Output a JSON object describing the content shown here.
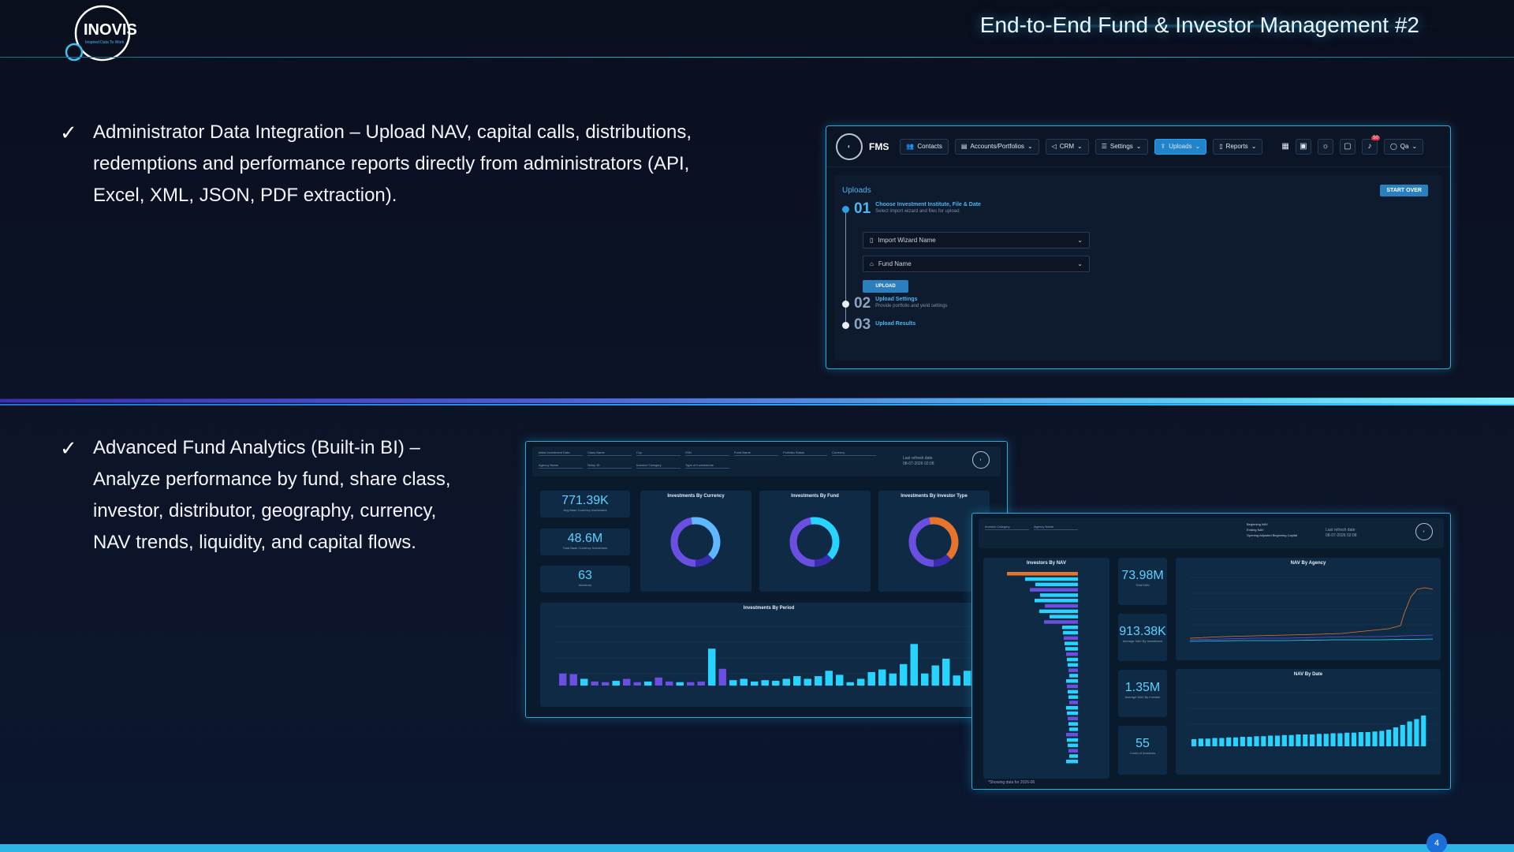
{
  "header": {
    "logo_text": "INOVIS",
    "logo_tagline": "Inspired Data To Work",
    "title": "End-to-End Fund & Investor Management #2"
  },
  "bullets": [
    {
      "check": "✓",
      "text": "Administrator Data Integration – Upload NAV, capital calls, distributions, redemptions and performance reports directly from administrators (API, Excel, XML, JSON, PDF extraction)."
    },
    {
      "check": "✓",
      "text": "Advanced Fund Analytics (Built-in BI) – Analyze performance by fund, share class, investor, distributor, geography, currency, NAV trends, liquidity, and capital flows."
    }
  ],
  "fms": {
    "brand": "FMS",
    "nav": [
      "Contacts",
      "Accounts/Portfolios",
      "CRM",
      "Settings",
      "Uploads",
      "Reports"
    ],
    "active_nav": "Uploads",
    "user": "Qa",
    "notif_count": "50",
    "uploads_title": "Uploads",
    "start_over": "START OVER",
    "steps": [
      {
        "num": "01",
        "title": "Choose Investment Institute, File & Date",
        "sub": "Select import wizard and files for upload"
      },
      {
        "num": "02",
        "title": "Upload Settings",
        "sub": "Provide portfolio and yield settings"
      },
      {
        "num": "03",
        "title": "Upload Results",
        "sub": ""
      }
    ],
    "import_wizard_placeholder": "Import Wizard Name",
    "fund_name_placeholder": "Fund Name",
    "upload_btn": "UPLOAD"
  },
  "dash1": {
    "kpis": [
      {
        "value": "771.39K",
        "label": "Avg Base Currency Investment"
      },
      {
        "value": "48.6M",
        "label": "Total Base Currency Investment"
      },
      {
        "value": "63",
        "label": "Investors"
      }
    ],
    "refresh": "Last refresh date\n08-07-2026 02:08",
    "donuts": [
      {
        "title": "Investments By Currency",
        "colors": [
          "#5fb8ff",
          "#6a4fe0",
          "#3a2cae"
        ]
      },
      {
        "title": "Investments By Fund",
        "colors": [
          "#27d3ff",
          "#6a4fe0",
          "#3a2cae"
        ]
      },
      {
        "title": "Investments By Investor Type",
        "colors": [
          "#e8742b",
          "#6a4fe0",
          "#3a2cae"
        ]
      }
    ],
    "period_title": "Investments By Period",
    "filter_labels": [
      "Initial Investment Date",
      "Class Name",
      "Ccy",
      "ISIN",
      "Fund Name",
      "Portfolio Status",
      "Currency",
      "Agency Name",
      "Setup ID",
      "Investor Category",
      "Type of Investments"
    ],
    "period_bars": [
      0.18,
      0.17,
      0.1,
      0.06,
      0.05,
      0.07,
      0.1,
      0.05,
      0.06,
      0.12,
      0.06,
      0.05,
      0.05,
      0.06,
      0.55,
      0.25,
      0.08,
      0.1,
      0.06,
      0.08,
      0.07,
      0.1,
      0.14,
      0.1,
      0.14,
      0.22,
      0.16,
      0.05,
      0.1,
      0.2,
      0.24,
      0.18,
      0.32,
      0.62,
      0.18,
      0.3,
      0.4,
      0.15,
      0.22,
      0.1
    ]
  },
  "dash2": {
    "kpis": [
      {
        "value": "73.98M",
        "label": "Total NAV"
      },
      {
        "value": "913.38K",
        "label": "Average NAV By Investment"
      },
      {
        "value": "1.35M",
        "label": "Average NAV By Investor"
      },
      {
        "value": "55",
        "label": "Count of Investors"
      }
    ],
    "refresh": "Last refresh date\n08-07-2026 02:08",
    "panels": [
      "Investors By NAV",
      "NAV By Agency",
      "NAV By Date"
    ],
    "filter_labels": [
      "Investor Category",
      "Agency Name"
    ],
    "radio": [
      "Beginning NAV",
      "Ending NAV",
      "Opening Adjusted Beginning Capital"
    ],
    "footer": "*Showing data for 2026-06",
    "nav_by_date_bars": [
      0.12,
      0.13,
      0.13,
      0.14,
      0.14,
      0.15,
      0.15,
      0.16,
      0.16,
      0.17,
      0.17,
      0.18,
      0.18,
      0.19,
      0.19,
      0.2,
      0.2,
      0.2,
      0.21,
      0.21,
      0.22,
      0.22,
      0.23,
      0.23,
      0.24,
      0.24,
      0.25,
      0.26,
      0.28,
      0.32,
      0.36,
      0.42,
      0.46,
      0.52
    ]
  },
  "page_number": "4",
  "colors": {
    "accent": "#2fa8d6",
    "cyan": "#5fd2ff",
    "purple": "#6a4fe0",
    "orange": "#e8742b"
  }
}
